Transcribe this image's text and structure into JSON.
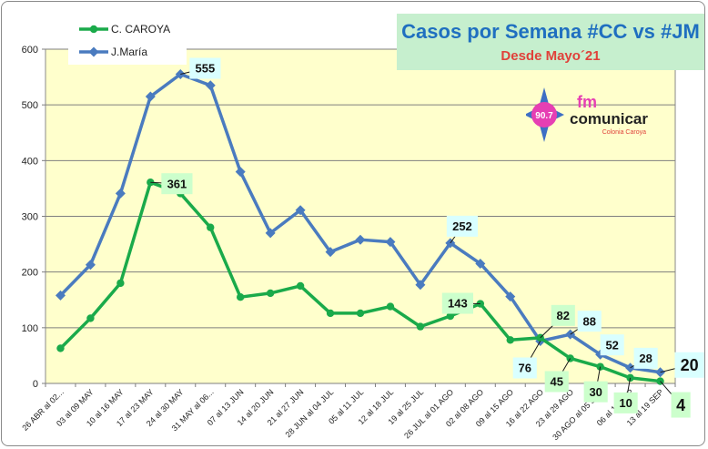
{
  "title": "Casos por Semana #CC vs #JM",
  "subtitle": "Desde Mayo´21",
  "logo": {
    "badge": "90.7",
    "fm": "fm",
    "name": "comunicar",
    "place": "Colonia Caroya"
  },
  "colors": {
    "caroya": "#1aaa4a",
    "maria": "#4a7bbf",
    "plot_bg": "#ffffcc",
    "title": "#1f6fc0",
    "subtitle": "#e0413a"
  },
  "chart_data": {
    "type": "line",
    "categories": [
      "26 ABR al 02...",
      "03 al 09 MAY",
      "10 al 16 MAY",
      "17 al 23 MAY",
      "24 al 30 MAY",
      "31 MAY al 06...",
      "07 al 13 JUN",
      "14 al 20 JUN",
      "21 al 27 JUN",
      "28 JUN al 04 JUL",
      "05 al 11 JUL",
      "12 al 18 JUL",
      "19 al 25 JUL",
      "26 JUL al 01 AGO",
      "02 al 08 AGO",
      "09 al 15 AGO",
      "16 al 22 AGO",
      "23 al 29 AGO",
      "30 AGO al 05 SEP",
      "06 al 12 SEP",
      "13 al 19 SEP"
    ],
    "series": [
      {
        "name": "C. CAROYA",
        "values": [
          63,
          117,
          180,
          361,
          341,
          280,
          155,
          162,
          175,
          126,
          126,
          138,
          102,
          121,
          143,
          78,
          82,
          45,
          30,
          10,
          4
        ]
      },
      {
        "name": "J.María",
        "values": [
          158,
          213,
          341,
          515,
          555,
          535,
          380,
          270,
          311,
          236,
          258,
          254,
          177,
          252,
          215,
          156,
          76,
          88,
          52,
          28,
          20
        ]
      }
    ],
    "ylim": [
      0,
      600
    ],
    "yticks": [
      0,
      100,
      200,
      300,
      400,
      500,
      600
    ],
    "annotations": [
      {
        "series": 1,
        "index": 4,
        "text": "555"
      },
      {
        "series": 0,
        "index": 3,
        "text": "361"
      },
      {
        "series": 1,
        "index": 13,
        "text": "252"
      },
      {
        "series": 0,
        "index": 14,
        "text": "143"
      },
      {
        "series": 0,
        "index": 16,
        "text": "82"
      },
      {
        "series": 1,
        "index": 16,
        "text": "76"
      },
      {
        "series": 1,
        "index": 17,
        "text": "88"
      },
      {
        "series": 0,
        "index": 17,
        "text": "45"
      },
      {
        "series": 1,
        "index": 18,
        "text": "52"
      },
      {
        "series": 0,
        "index": 18,
        "text": "30"
      },
      {
        "series": 1,
        "index": 19,
        "text": "28"
      },
      {
        "series": 0,
        "index": 19,
        "text": "10"
      },
      {
        "series": 1,
        "index": 20,
        "text": "20"
      },
      {
        "series": 0,
        "index": 20,
        "text": "4"
      }
    ]
  }
}
